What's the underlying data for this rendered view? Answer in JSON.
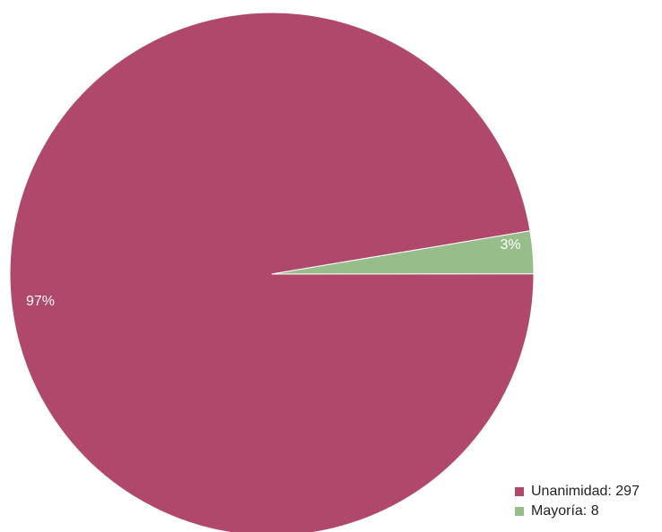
{
  "chart_data": {
    "type": "pie",
    "slices": [
      {
        "name": "Unanimidad",
        "value": 297,
        "percent_label": "97%",
        "legend_label": "Unanimidad: 297",
        "color": "#b0486b"
      },
      {
        "name": "Mayoría",
        "value": 8,
        "percent_label": "3%",
        "legend_label": "Mayoría: 8",
        "color": "#97bd8a"
      }
    ],
    "legend": {
      "position": "bottom-right"
    }
  }
}
